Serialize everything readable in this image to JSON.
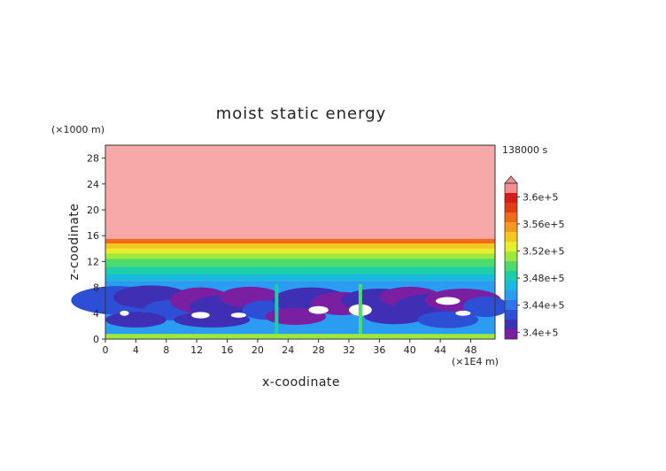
{
  "chart_data": {
    "type": "heatmap",
    "title": "moist static energy",
    "xlabel": "x-coodinate",
    "ylabel": "z-coodinate",
    "x_unit": "(×1E4 m)",
    "y_unit": "(×1000 m)",
    "time_label": "138000 s",
    "xlim": [
      0,
      51.2
    ],
    "ylim": [
      0,
      30
    ],
    "x_ticks": [
      "0",
      "4",
      "8",
      "12",
      "16",
      "20",
      "24",
      "28",
      "32",
      "36",
      "40",
      "44",
      "48"
    ],
    "y_ticks": [
      "0",
      "4",
      "8",
      "12",
      "16",
      "20",
      "24",
      "28"
    ],
    "colorbar": {
      "range": [
        339000.0,
        362000.0
      ],
      "labels": [
        "3.6e+5",
        "3.56e+5",
        "3.52e+5",
        "3.48e+5",
        "3.44e+5",
        "3.4e+5"
      ],
      "colors": [
        "#7b1fa2",
        "#3f2fb5",
        "#2d4fd6",
        "#2f74e8",
        "#2a9cf2",
        "#19b9e0",
        "#1ccfa8",
        "#4ddc6a",
        "#9de83c",
        "#e6ee2e",
        "#f5c821",
        "#f59a1c",
        "#f06a18",
        "#e33b15",
        "#d81b1b",
        "#f48d8d"
      ],
      "extend": "max"
    },
    "field_description_levels": {
      "upper_layer_z": [
        15.5,
        30
      ],
      "band_z": [
        [
          14.8,
          15.5
        ],
        [
          14,
          14.8
        ],
        [
          13.2,
          14
        ],
        [
          12.4,
          13.2
        ],
        [
          11.2,
          12.4
        ],
        [
          10,
          11.2
        ],
        [
          9,
          10
        ]
      ]
    }
  }
}
